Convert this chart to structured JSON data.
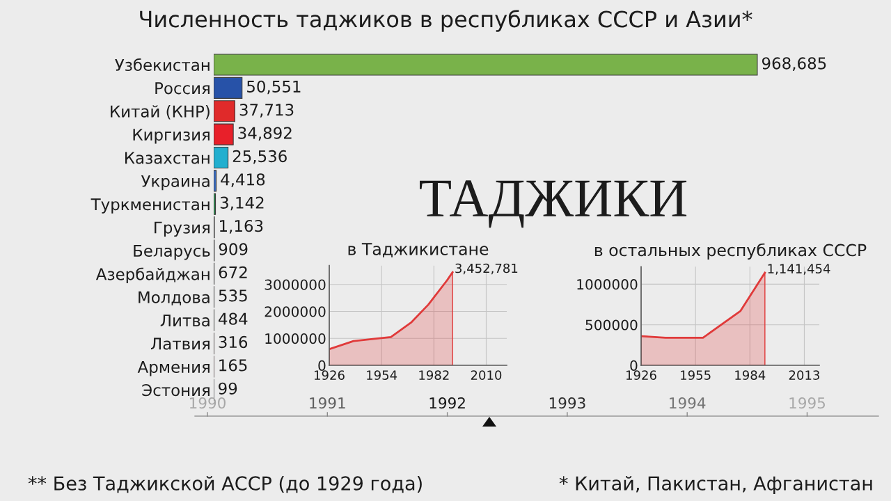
{
  "chart_data": [
    {
      "type": "bar",
      "orientation": "horizontal",
      "title": "Численность таджиков в республиках СССР и Азии*",
      "categories": [
        "Узбекистан",
        "Россия",
        "Китай (КНР)",
        "Киргизия",
        "Казахстан",
        "Украина",
        "Туркменистан",
        "Грузия",
        "Беларусь",
        "Азербайджан",
        "Молдова",
        "Литва",
        "Латвия",
        "Армения",
        "Эстония"
      ],
      "values": [
        968685,
        50551,
        37713,
        34892,
        25536,
        4418,
        3142,
        1163,
        909,
        672,
        535,
        484,
        316,
        165,
        99
      ],
      "colors": [
        "#79b24a",
        "#2752a8",
        "#e02a2a",
        "#e8202a",
        "#22afcf",
        "#3b6cc0",
        "#2e8b4f",
        "#bbbbbb",
        "#3a9a4a",
        "#3aa0d0",
        "#cc2244",
        "#4a8a3a",
        "#9e3039",
        "#d90012",
        "#3a7ad0"
      ],
      "value_labels": [
        "968,685",
        "50,551",
        "37,713",
        "34,892",
        "25,536",
        "4,418",
        "3,142",
        "1,163",
        "909",
        "672",
        "535",
        "484",
        "316",
        "165",
        "99"
      ],
      "tick_labels": "y",
      "annotations": [
        "ТАДЖИКИ",
        "** Без Таджикской АССР (до 1929 года)",
        "* Китай, Пакистан, Афганистан",
        "1990",
        "1991",
        "1992",
        "1993",
        "1994",
        "1995"
      ]
    },
    {
      "type": "area",
      "title": "в Таджикистане",
      "x": [
        1926,
        1939,
        1959,
        1970,
        1979,
        1989,
        1992
      ],
      "series": [
        {
          "color": "#e03a3a",
          "values": [
            600000,
            900000,
            1050000,
            1600000,
            2250000,
            3150000,
            3452781
          ],
          "value_labels": [
            null,
            null,
            null,
            null,
            null,
            null,
            "3,452,781"
          ]
        }
      ],
      "xlim": [
        1926,
        2021
      ],
      "xticks": [
        1926,
        1954,
        1982,
        2010
      ],
      "ylim": [
        0,
        3700000
      ],
      "yticks": [
        0,
        1000000,
        2000000,
        3000000
      ],
      "grid": true
    },
    {
      "type": "area",
      "title": "в остальных республиках СССР",
      "x": [
        1926,
        1939,
        1959,
        1979,
        1992
      ],
      "series": [
        {
          "color": "#e03a3a",
          "values": [
            360000,
            340000,
            340000,
            670000,
            1141454
          ],
          "value_labels": [
            null,
            null,
            null,
            null,
            "1,141,454"
          ]
        }
      ],
      "xlim": [
        1926,
        2021
      ],
      "xticks": [
        1926,
        1955,
        1984,
        2013
      ],
      "ylim": [
        0,
        1215000
      ],
      "yticks": [
        0,
        500000,
        1000000
      ],
      "grid": true
    }
  ]
}
